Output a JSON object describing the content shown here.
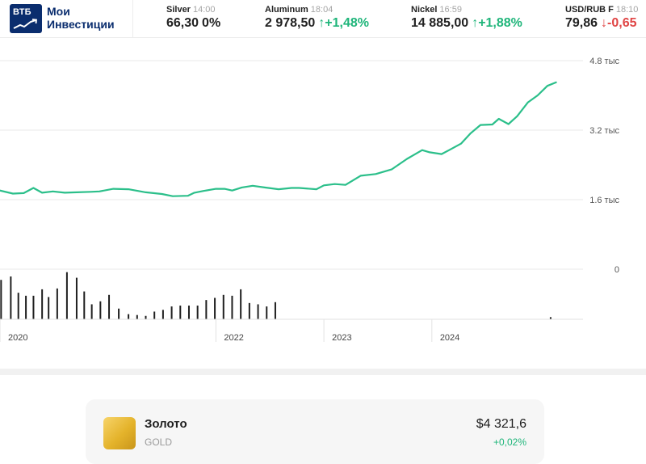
{
  "header": {
    "logo": {
      "brand": "ВТБ",
      "line1": "Мои",
      "line2": "Инвестиции"
    },
    "tickers": [
      {
        "name": "Silver",
        "time": "14:00",
        "price": "66,30",
        "change": "0%",
        "direction": "flat"
      },
      {
        "name": "Aluminum",
        "time": "18:04",
        "price": "2 978,50",
        "change": "+1,48%",
        "direction": "up"
      },
      {
        "name": "Nickel",
        "time": "16:59",
        "price": "14 885,00",
        "change": "+1,88%",
        "direction": "up"
      },
      {
        "name": "USD/RUB F",
        "time": "18:10",
        "price": "79,86",
        "change": "-0,65",
        "direction": "down"
      }
    ]
  },
  "chart_data": {
    "type": "line",
    "ylim": [
      0,
      4800
    ],
    "y_ticks": [
      {
        "value": 4800,
        "label": "4.8 тыс"
      },
      {
        "value": 3200,
        "label": "3.2 тыс"
      },
      {
        "value": 1600,
        "label": "1.6 тыс"
      },
      {
        "value": 0,
        "label": "0"
      }
    ],
    "x_ticks": [
      {
        "x": 2019.95,
        "label": "2020"
      },
      {
        "x": 2021.95,
        "label": "2022"
      },
      {
        "x": 2022.95,
        "label": "2023"
      },
      {
        "x": 2023.95,
        "label": "2024"
      }
    ],
    "xlim": [
      2019.95,
      2025.35
    ],
    "series": [
      {
        "color": "#2bbf8a",
        "points": [
          [
            2019.95,
            1810
          ],
          [
            2020.07,
            1740
          ],
          [
            2020.17,
            1750
          ],
          [
            2020.26,
            1870
          ],
          [
            2020.34,
            1760
          ],
          [
            2020.44,
            1790
          ],
          [
            2020.55,
            1760
          ],
          [
            2020.66,
            1770
          ],
          [
            2020.79,
            1780
          ],
          [
            2020.87,
            1790
          ],
          [
            2021.0,
            1850
          ],
          [
            2021.14,
            1840
          ],
          [
            2021.3,
            1770
          ],
          [
            2021.45,
            1730
          ],
          [
            2021.55,
            1680
          ],
          [
            2021.69,
            1690
          ],
          [
            2021.75,
            1760
          ],
          [
            2021.83,
            1800
          ],
          [
            2021.95,
            1850
          ],
          [
            2022.03,
            1850
          ],
          [
            2022.1,
            1810
          ],
          [
            2022.19,
            1880
          ],
          [
            2022.29,
            1920
          ],
          [
            2022.4,
            1880
          ],
          [
            2022.53,
            1840
          ],
          [
            2022.65,
            1870
          ],
          [
            2022.72,
            1870
          ],
          [
            2022.88,
            1840
          ],
          [
            2022.95,
            1930
          ],
          [
            2023.05,
            1960
          ],
          [
            2023.15,
            1940
          ],
          [
            2023.29,
            2150
          ],
          [
            2023.43,
            2190
          ],
          [
            2023.58,
            2300
          ],
          [
            2023.72,
            2540
          ],
          [
            2023.86,
            2740
          ],
          [
            2023.93,
            2690
          ],
          [
            2024.04,
            2650
          ],
          [
            2024.11,
            2740
          ],
          [
            2024.22,
            2890
          ],
          [
            2024.31,
            3130
          ],
          [
            2024.4,
            3320
          ],
          [
            2024.51,
            3330
          ],
          [
            2024.57,
            3460
          ],
          [
            2024.66,
            3340
          ],
          [
            2024.74,
            3520
          ],
          [
            2024.84,
            3840
          ],
          [
            2024.93,
            4000
          ],
          [
            2025.02,
            4220
          ],
          [
            2025.1,
            4300
          ]
        ]
      }
    ],
    "volume": {
      "color": "#1f1f1f",
      "bars": [
        [
          2019.96,
          0.92
        ],
        [
          2020.05,
          1.0
        ],
        [
          2020.12,
          0.62
        ],
        [
          2020.19,
          0.55
        ],
        [
          2020.26,
          0.55
        ],
        [
          2020.34,
          0.7
        ],
        [
          2020.4,
          0.52
        ],
        [
          2020.48,
          0.72
        ],
        [
          2020.57,
          1.1
        ],
        [
          2020.66,
          0.97
        ],
        [
          2020.73,
          0.65
        ],
        [
          2020.8,
          0.35
        ],
        [
          2020.88,
          0.42
        ],
        [
          2020.96,
          0.57
        ],
        [
          2021.05,
          0.25
        ],
        [
          2021.14,
          0.12
        ],
        [
          2021.22,
          0.1
        ],
        [
          2021.3,
          0.08
        ],
        [
          2021.38,
          0.18
        ],
        [
          2021.46,
          0.22
        ],
        [
          2021.54,
          0.3
        ],
        [
          2021.62,
          0.32
        ],
        [
          2021.7,
          0.32
        ],
        [
          2021.78,
          0.32
        ],
        [
          2021.86,
          0.45
        ],
        [
          2021.94,
          0.5
        ],
        [
          2022.02,
          0.57
        ],
        [
          2022.1,
          0.55
        ],
        [
          2022.18,
          0.7
        ],
        [
          2022.26,
          0.38
        ],
        [
          2022.34,
          0.35
        ],
        [
          2022.42,
          0.3
        ],
        [
          2022.5,
          0.4
        ],
        [
          2025.05,
          0.05
        ]
      ]
    }
  },
  "asset_card": {
    "name": "Золото",
    "code": "GOLD",
    "price": "$4 321,6",
    "change": "+0,02%"
  }
}
